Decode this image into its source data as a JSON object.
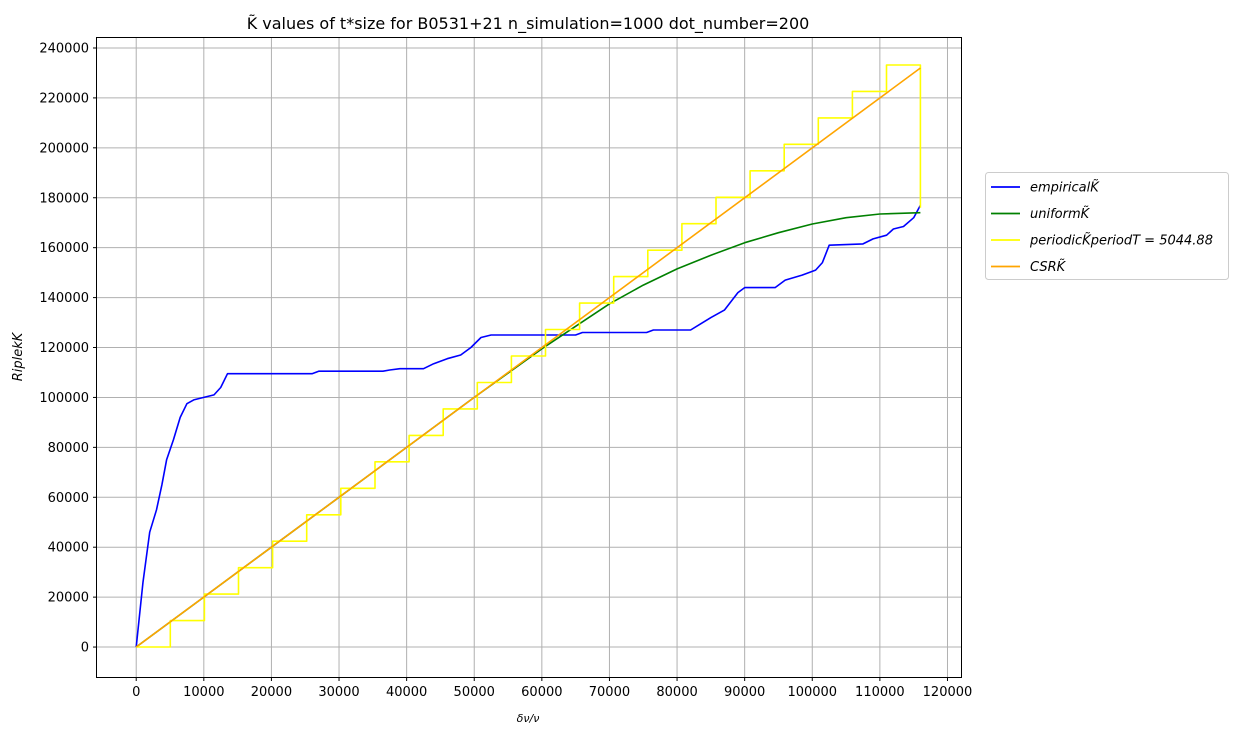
{
  "chart_data": {
    "type": "line",
    "title": "K̃ values of t*size for B0531+21 n_simulation=1000 dot_number=200",
    "xlabel": "δν/ν",
    "ylabel": "RiplekK",
    "xlim": [
      -5800,
      122000
    ],
    "ylim": [
      -12000,
      244000
    ],
    "xticks": [
      0,
      10000,
      20000,
      30000,
      40000,
      50000,
      60000,
      70000,
      80000,
      90000,
      100000,
      110000,
      120000
    ],
    "yticks": [
      0,
      20000,
      40000,
      60000,
      80000,
      100000,
      120000,
      140000,
      160000,
      180000,
      200000,
      220000,
      240000
    ],
    "grid": true,
    "legend_position": "right-outside",
    "series": [
      {
        "name": "empiricalK̃",
        "color": "#0000ff",
        "points": [
          [
            0,
            0
          ],
          [
            1000,
            26000
          ],
          [
            2000,
            46000
          ],
          [
            3000,
            55000
          ],
          [
            3800,
            65000
          ],
          [
            4500,
            75000
          ],
          [
            5500,
            83000
          ],
          [
            6500,
            92000
          ],
          [
            7500,
            97500
          ],
          [
            8500,
            99000
          ],
          [
            10000,
            100000
          ],
          [
            11500,
            101000
          ],
          [
            12500,
            104000
          ],
          [
            13500,
            109500
          ],
          [
            26000,
            109500
          ],
          [
            27000,
            110500
          ],
          [
            36500,
            110500
          ],
          [
            37500,
            111000
          ],
          [
            39000,
            111500
          ],
          [
            42500,
            111500
          ],
          [
            44000,
            113500
          ],
          [
            46000,
            115500
          ],
          [
            48000,
            117000
          ],
          [
            49500,
            120000
          ],
          [
            51000,
            124000
          ],
          [
            52500,
            125000
          ],
          [
            65000,
            125000
          ],
          [
            66000,
            126000
          ],
          [
            75500,
            126000
          ],
          [
            76500,
            127000
          ],
          [
            82000,
            127000
          ],
          [
            83500,
            129500
          ],
          [
            85000,
            132000
          ],
          [
            87000,
            135000
          ],
          [
            89000,
            142000
          ],
          [
            90000,
            144000
          ],
          [
            94500,
            144000
          ],
          [
            96000,
            147000
          ],
          [
            98500,
            149000
          ],
          [
            100500,
            151000
          ],
          [
            101500,
            154000
          ],
          [
            102500,
            161000
          ],
          [
            107500,
            161500
          ],
          [
            109000,
            163500
          ],
          [
            111000,
            165000
          ],
          [
            112000,
            167500
          ],
          [
            113500,
            168500
          ],
          [
            115000,
            172000
          ],
          [
            116000,
            177000
          ]
        ]
      },
      {
        "name": "uniformK̃",
        "color": "#008000",
        "points": [
          [
            0,
            0
          ],
          [
            10000,
            20000
          ],
          [
            20000,
            40000
          ],
          [
            30000,
            60000
          ],
          [
            40000,
            80000
          ],
          [
            50000,
            100000
          ],
          [
            60000,
            119500
          ],
          [
            65000,
            128500
          ],
          [
            70000,
            137500
          ],
          [
            75000,
            145000
          ],
          [
            80000,
            151500
          ],
          [
            85000,
            157000
          ],
          [
            90000,
            162000
          ],
          [
            95000,
            166000
          ],
          [
            100000,
            169500
          ],
          [
            105000,
            172000
          ],
          [
            110000,
            173500
          ],
          [
            116000,
            174000
          ]
        ]
      },
      {
        "name": "periodicK̃periodT = 5044.88",
        "color": "#ffff00",
        "period": 5044.88,
        "step_height": 10600,
        "x_end": 116000,
        "y_end": 176000
      },
      {
        "name": "CSRK̃",
        "color": "#ffa500",
        "points": [
          [
            0,
            0
          ],
          [
            116000,
            232000
          ]
        ]
      }
    ]
  }
}
